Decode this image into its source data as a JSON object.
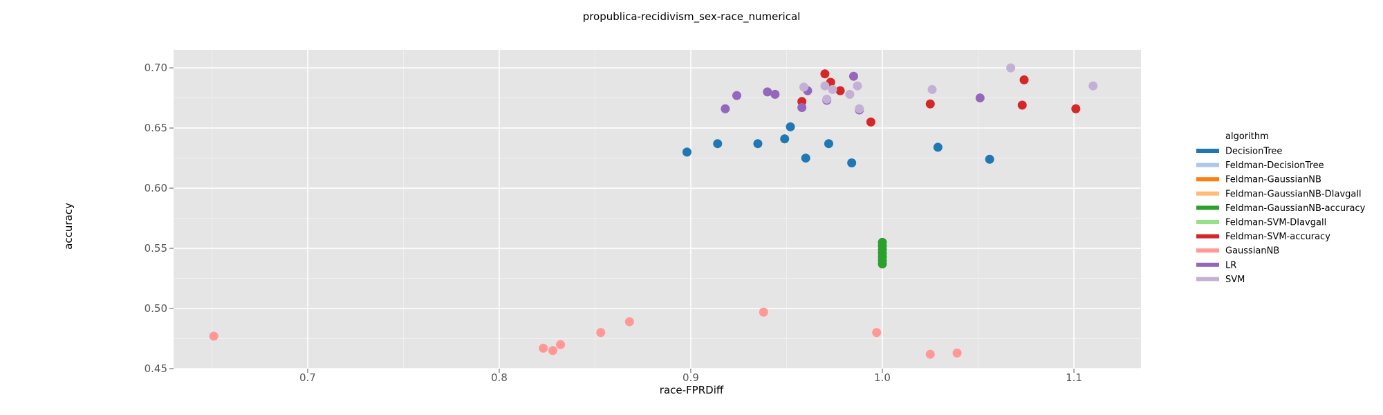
{
  "chart_data": {
    "type": "scatter",
    "title": "propublica-recidivism_sex-race_numerical",
    "xlabel": "race-FPRDiff",
    "ylabel": "accuracy",
    "xlim": [
      0.63,
      1.135
    ],
    "ylim": [
      0.45,
      0.715
    ],
    "xticks": [
      0.7,
      0.8,
      0.9,
      1.0,
      1.1
    ],
    "xtick_labels": [
      "0.7",
      "0.8",
      "0.9",
      "1.0",
      "1.1"
    ],
    "yticks": [
      0.45,
      0.5,
      0.55,
      0.6,
      0.65,
      0.7
    ],
    "ytick_labels": [
      "0.45",
      "0.50",
      "0.55",
      "0.60",
      "0.65",
      "0.70"
    ],
    "grid": true,
    "legend": {
      "title": "algorithm",
      "position": "right"
    },
    "series": [
      {
        "name": "DecisionTree",
        "color": "#1f77b4",
        "points": [
          [
            0.898,
            0.63
          ],
          [
            0.914,
            0.637
          ],
          [
            0.935,
            0.637
          ],
          [
            0.949,
            0.641
          ],
          [
            0.952,
            0.651
          ],
          [
            0.96,
            0.625
          ],
          [
            0.972,
            0.637
          ],
          [
            0.984,
            0.621
          ],
          [
            1.029,
            0.634
          ],
          [
            1.056,
            0.624
          ]
        ]
      },
      {
        "name": "Feldman-DecisionTree",
        "color": "#aec7e8",
        "points": []
      },
      {
        "name": "Feldman-GaussianNB",
        "color": "#ff7f0e",
        "points": []
      },
      {
        "name": "Feldman-GaussianNB-DIavgall",
        "color": "#ffbb78",
        "points": []
      },
      {
        "name": "Feldman-GaussianNB-accuracy",
        "color": "#2ca02c",
        "points": [
          [
            1.0,
            0.537
          ],
          [
            1.0,
            0.54
          ],
          [
            1.0,
            0.543
          ],
          [
            1.0,
            0.546
          ],
          [
            1.0,
            0.549
          ],
          [
            1.0,
            0.552
          ],
          [
            1.0,
            0.555
          ]
        ]
      },
      {
        "name": "Feldman-SVM-DIavgall",
        "color": "#98df8a",
        "points": []
      },
      {
        "name": "Feldman-SVM-accuracy",
        "color": "#d62728",
        "points": [
          [
            0.958,
            0.672
          ],
          [
            0.97,
            0.695
          ],
          [
            0.973,
            0.688
          ],
          [
            0.978,
            0.681
          ],
          [
            0.994,
            0.655
          ],
          [
            1.025,
            0.67
          ],
          [
            1.073,
            0.669
          ],
          [
            1.074,
            0.69
          ],
          [
            1.101,
            0.666
          ]
        ]
      },
      {
        "name": "GaussianNB",
        "color": "#ff9896",
        "points": [
          [
            0.651,
            0.477
          ],
          [
            0.823,
            0.467
          ],
          [
            0.828,
            0.465
          ],
          [
            0.832,
            0.47
          ],
          [
            0.853,
            0.48
          ],
          [
            0.868,
            0.489
          ],
          [
            0.938,
            0.497
          ],
          [
            0.997,
            0.48
          ],
          [
            1.025,
            0.462
          ],
          [
            1.039,
            0.463
          ]
        ]
      },
      {
        "name": "LR",
        "color": "#9467bd",
        "points": [
          [
            0.918,
            0.666
          ],
          [
            0.924,
            0.677
          ],
          [
            0.94,
            0.68
          ],
          [
            0.944,
            0.678
          ],
          [
            0.958,
            0.667
          ],
          [
            0.961,
            0.681
          ],
          [
            0.971,
            0.673
          ],
          [
            0.985,
            0.693
          ],
          [
            0.988,
            0.665
          ],
          [
            1.051,
            0.675
          ]
        ]
      },
      {
        "name": "SVM",
        "color": "#c5b0d5",
        "points": [
          [
            0.959,
            0.684
          ],
          [
            0.97,
            0.685
          ],
          [
            0.971,
            0.674
          ],
          [
            0.974,
            0.682
          ],
          [
            0.983,
            0.678
          ],
          [
            0.987,
            0.685
          ],
          [
            0.988,
            0.666
          ],
          [
            1.026,
            0.682
          ],
          [
            1.067,
            0.7
          ],
          [
            1.11,
            0.685
          ]
        ]
      }
    ]
  }
}
